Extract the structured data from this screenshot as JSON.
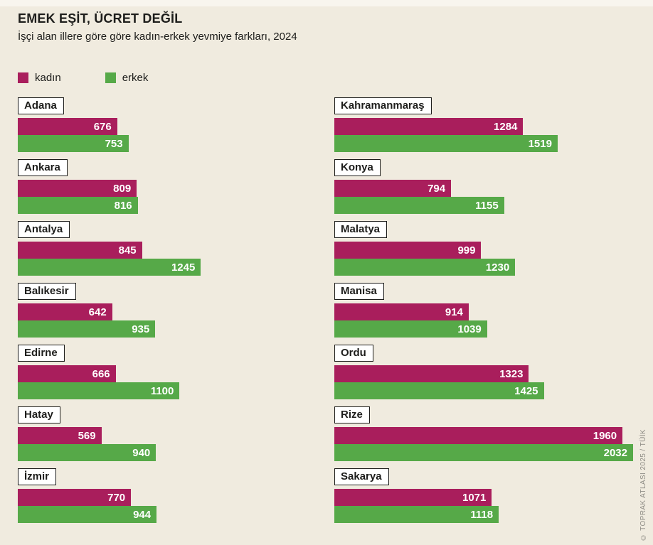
{
  "header": {
    "title": "EMEK EŞİT, ÜCRET DEĞİL",
    "subtitle": "İşçi alan illere göre göre kadın-erkek yevmiye farkları, 2024"
  },
  "legend": {
    "kadin_label": "kadın",
    "erkek_label": "erkek"
  },
  "colors": {
    "kadin": "#a91e5c",
    "erkek": "#56a948",
    "background": "#f0ebdf",
    "label_box_border": "#1d1d1b"
  },
  "credit": "© TOPRAK ATLASI 2025 / TÜİK",
  "chart_data": {
    "type": "bar",
    "orientation": "horizontal",
    "title": "EMEK EŞİT, ÜCRET DEĞİL",
    "subtitle": "İşçi alan illere göre göre kadın-erkek yevmiye farkları, 2024",
    "series_names": [
      "kadın",
      "erkek"
    ],
    "value_axis_max": 2032,
    "grid": false,
    "legend_position": "top-left",
    "columns": [
      {
        "position": "left",
        "provinces": [
          {
            "name": "Adana",
            "kadin": 676,
            "erkek": 753
          },
          {
            "name": "Ankara",
            "kadin": 809,
            "erkek": 816
          },
          {
            "name": "Antalya",
            "kadin": 845,
            "erkek": 1245
          },
          {
            "name": "Balıkesir",
            "kadin": 642,
            "erkek": 935
          },
          {
            "name": "Edirne",
            "kadin": 666,
            "erkek": 1100
          },
          {
            "name": "Hatay",
            "kadin": 569,
            "erkek": 940
          },
          {
            "name": "İzmir",
            "kadin": 770,
            "erkek": 944
          }
        ]
      },
      {
        "position": "right",
        "provinces": [
          {
            "name": "Kahramanmaraş",
            "kadin": 1284,
            "erkek": 1519
          },
          {
            "name": "Konya",
            "kadin": 794,
            "erkek": 1155
          },
          {
            "name": "Malatya",
            "kadin": 999,
            "erkek": 1230
          },
          {
            "name": "Manisa",
            "kadin": 914,
            "erkek": 1039
          },
          {
            "name": "Ordu",
            "kadin": 1323,
            "erkek": 1425
          },
          {
            "name": "Rize",
            "kadin": 1960,
            "erkek": 2032
          },
          {
            "name": "Sakarya",
            "kadin": 1071,
            "erkek": 1118
          }
        ]
      }
    ]
  }
}
